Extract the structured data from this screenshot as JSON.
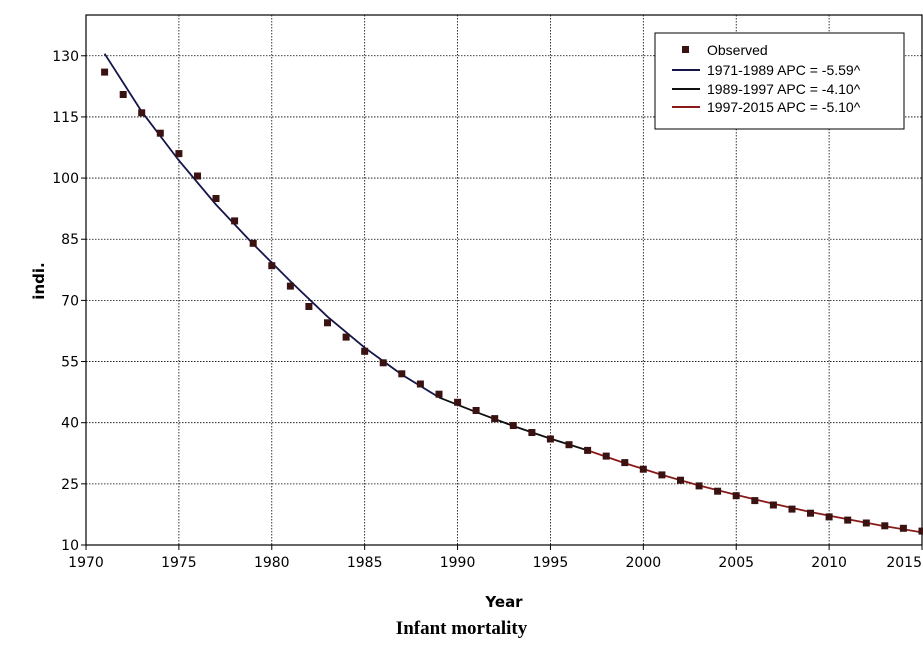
{
  "chart_data": {
    "type": "scatter",
    "title": "Infant mortality",
    "xlabel": "Year",
    "ylabel": "indi.",
    "xlim": [
      1970,
      2015
    ],
    "ylim": [
      10,
      140
    ],
    "x_ticks": [
      1970,
      1975,
      1980,
      1985,
      1990,
      1995,
      2000,
      2005,
      2010,
      2015
    ],
    "y_ticks": [
      10,
      25,
      40,
      55,
      70,
      85,
      100,
      115,
      130
    ],
    "grid": true,
    "legend_position": "top-right",
    "observed": {
      "name": "Observed",
      "color": "#3a1212",
      "x": [
        1971,
        1972,
        1973,
        1974,
        1975,
        1976,
        1977,
        1978,
        1979,
        1980,
        1981,
        1982,
        1983,
        1984,
        1985,
        1986,
        1987,
        1988,
        1989,
        1990,
        1991,
        1992,
        1993,
        1994,
        1995,
        1996,
        1997,
        1998,
        1999,
        2000,
        2001,
        2002,
        2003,
        2004,
        2005,
        2006,
        2007,
        2008,
        2009,
        2010,
        2011,
        2012,
        2013,
        2014,
        2015
      ],
      "y": [
        126,
        120.5,
        116,
        111,
        106,
        100.5,
        95,
        89.5,
        84,
        78.5,
        73.5,
        68.5,
        64.5,
        61,
        57.5,
        54.7,
        52,
        49.5,
        47,
        45,
        43,
        41,
        39.3,
        37.6,
        36,
        34.6,
        33.2,
        31.8,
        30.2,
        28.6,
        27.2,
        25.9,
        24.5,
        23.2,
        22.1,
        20.9,
        19.8,
        18.8,
        17.8,
        16.9,
        16.1,
        15.4,
        14.7,
        14.1,
        13.4
      ]
    },
    "segments": [
      {
        "name": "1971-1989 APC  = -5.59^",
        "color": "#15154a",
        "x": [
          1971,
          1973,
          1975,
          1977,
          1979,
          1981,
          1983,
          1985,
          1987,
          1989
        ],
        "y": [
          130.5,
          116.3,
          104.3,
          93.5,
          83.8,
          74.7,
          66.0,
          58.4,
          51.8,
          46.2
        ]
      },
      {
        "name": "1989-1997 APC  = -4.10^",
        "color": "#101010",
        "x": [
          1989,
          1991,
          1993,
          1995,
          1997
        ],
        "y": [
          46.2,
          42.6,
          39.2,
          36.1,
          33.2
        ]
      },
      {
        "name": "1997-2015 APC  = -5.10^",
        "color": "#8a1a1a",
        "x": [
          1997,
          1999,
          2001,
          2003,
          2005,
          2007,
          2009,
          2011,
          2013,
          2015
        ],
        "y": [
          33.2,
          30.1,
          27.2,
          24.6,
          22.3,
          20.1,
          18.1,
          16.3,
          14.6,
          13.1
        ]
      }
    ]
  }
}
